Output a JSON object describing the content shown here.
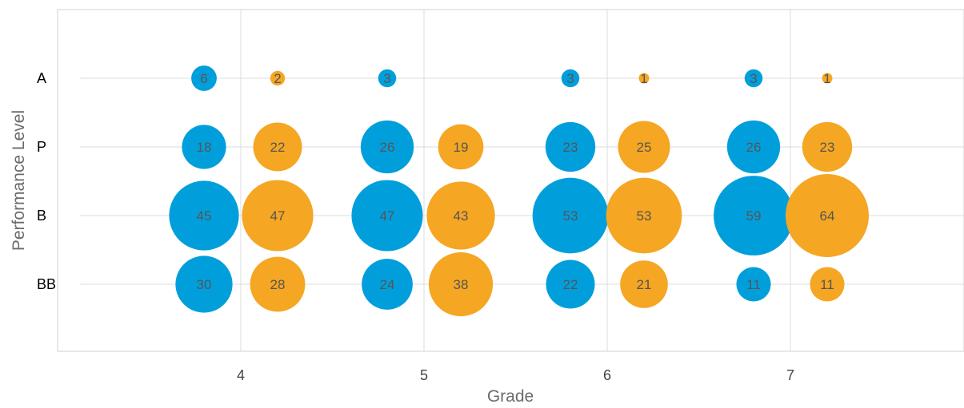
{
  "chart_data": {
    "type": "bubble",
    "xlabel": "Grade",
    "ylabel": "Performance Level",
    "x_categories": [
      "4",
      "5",
      "6",
      "7"
    ],
    "y_categories": [
      "A",
      "P",
      "B",
      "BB"
    ],
    "grid": true,
    "legend": "none",
    "colors": [
      "#009fdb",
      "#f5a623"
    ],
    "series": [
      {
        "values": [
          [
            6,
            18,
            45,
            30
          ],
          [
            3,
            26,
            47,
            24
          ],
          [
            3,
            23,
            53,
            22
          ],
          [
            3,
            26,
            59,
            11
          ]
        ]
      },
      {
        "values": [
          [
            2,
            22,
            47,
            28
          ],
          [
            null,
            19,
            43,
            38
          ],
          [
            1,
            25,
            53,
            21
          ],
          [
            1,
            23,
            64,
            11
          ]
        ]
      }
    ]
  }
}
